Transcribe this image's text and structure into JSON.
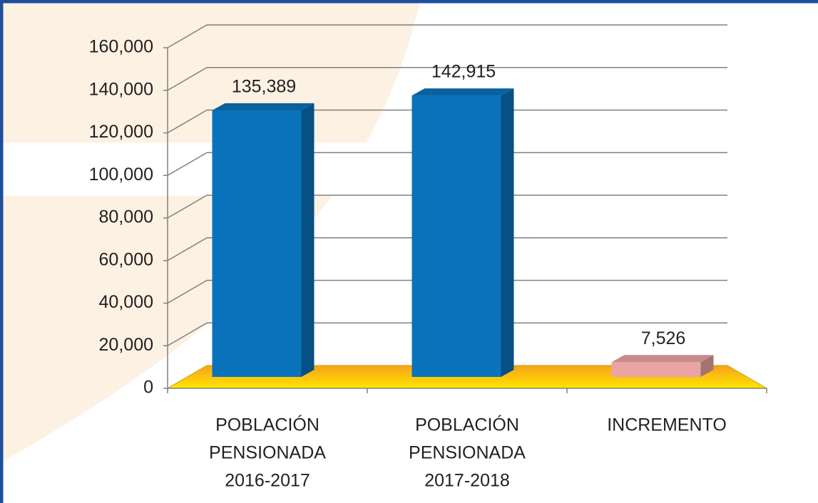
{
  "chart_data": {
    "type": "bar3d",
    "categories": [
      [
        "POBLACIÓN",
        "PENSIONADA",
        "2016-2017"
      ],
      [
        "POBLACIÓN",
        "PENSIONADA",
        "2017-2018"
      ],
      [
        "INCREMENTO"
      ]
    ],
    "values": [
      135389,
      142915,
      7526
    ],
    "value_labels": [
      "135,389",
      "142,915",
      "7,526"
    ],
    "colors": [
      "#0a72bb",
      "#0a72bb",
      "#e9a4a3"
    ],
    "ylim": [
      0,
      160000
    ],
    "yticks": [
      0,
      {
        "value": 20000,
        "label": "20,000"
      },
      {
        "value": 40000,
        "label": "40,000"
      },
      {
        "value": 60000,
        "label": "60,000"
      },
      {
        "value": 80000,
        "label": "80,000"
      },
      {
        "value": 100000,
        "label": "100,000"
      },
      {
        "value": 120000,
        "label": "120,000"
      },
      {
        "value": 140000,
        "label": "140,000"
      },
      {
        "value": 160000,
        "label": "160,000"
      }
    ],
    "grid": true
  }
}
